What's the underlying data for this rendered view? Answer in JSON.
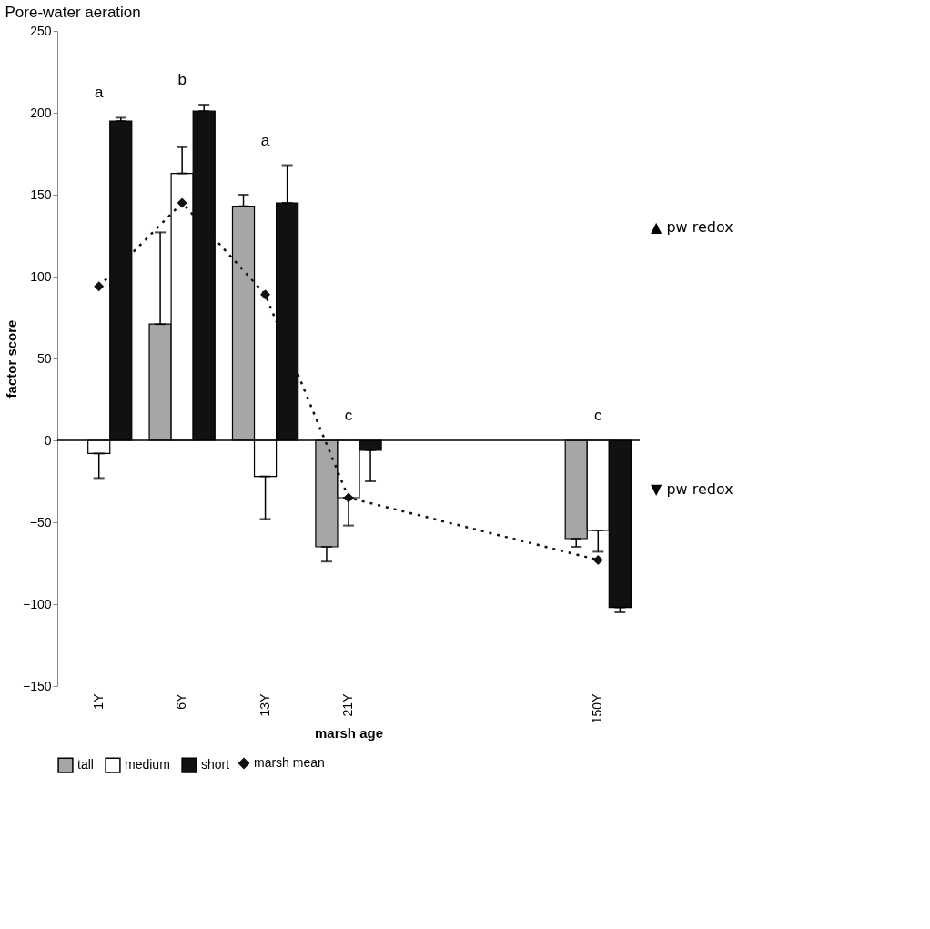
{
  "chart_data": {
    "type": "bar",
    "title": "Pore-water aeration",
    "xlabel": "marsh age",
    "ylabel": "factor score",
    "categories": [
      "1Y",
      "6Y",
      "13Y",
      "21Y",
      null,
      null,
      "150Y"
    ],
    "series": [
      {
        "name": "tall",
        "color": "#a6a6a6",
        "values": [
          null,
          71,
          143,
          -65,
          null,
          null,
          -60
        ],
        "errors": [
          null,
          [
            71,
            127
          ],
          [
            143,
            150
          ],
          [
            -74,
            -65
          ],
          null,
          null,
          [
            -65,
            -60
          ]
        ]
      },
      {
        "name": "medium",
        "color": "#ffffff",
        "values": [
          -8,
          163,
          -22,
          -35,
          null,
          null,
          -55
        ],
        "errors": [
          [
            -23,
            -8
          ],
          [
            163,
            179
          ],
          [
            -48,
            -22
          ],
          [
            -52,
            -35
          ],
          null,
          null,
          [
            -68,
            -55
          ]
        ]
      },
      {
        "name": "short",
        "color": "#111111",
        "values": [
          195,
          201,
          145,
          -6,
          null,
          null,
          -102
        ],
        "errors": [
          [
            195,
            197
          ],
          [
            201,
            205
          ],
          [
            145,
            168
          ],
          [
            -25,
            -6
          ],
          null,
          null,
          [
            -105,
            -102
          ]
        ]
      },
      {
        "name": "marsh mean",
        "type": "line",
        "color": "#111111",
        "marker": "diamond",
        "line_style": "dotted",
        "values": [
          94,
          145,
          89,
          -35,
          null,
          null,
          -73
        ]
      }
    ],
    "ylim": [
      -150,
      250
    ],
    "yticks": [
      -150,
      -100,
      -50,
      0,
      50,
      100,
      150,
      200,
      250
    ],
    "ref_lines": [
      {
        "axis": "y",
        "value": 0
      }
    ],
    "grid": false,
    "legend": "bottom",
    "annotations": [
      "a",
      "b",
      "a",
      "c",
      "c",
      "▲ pw redox",
      "▼ pw redox"
    ]
  }
}
